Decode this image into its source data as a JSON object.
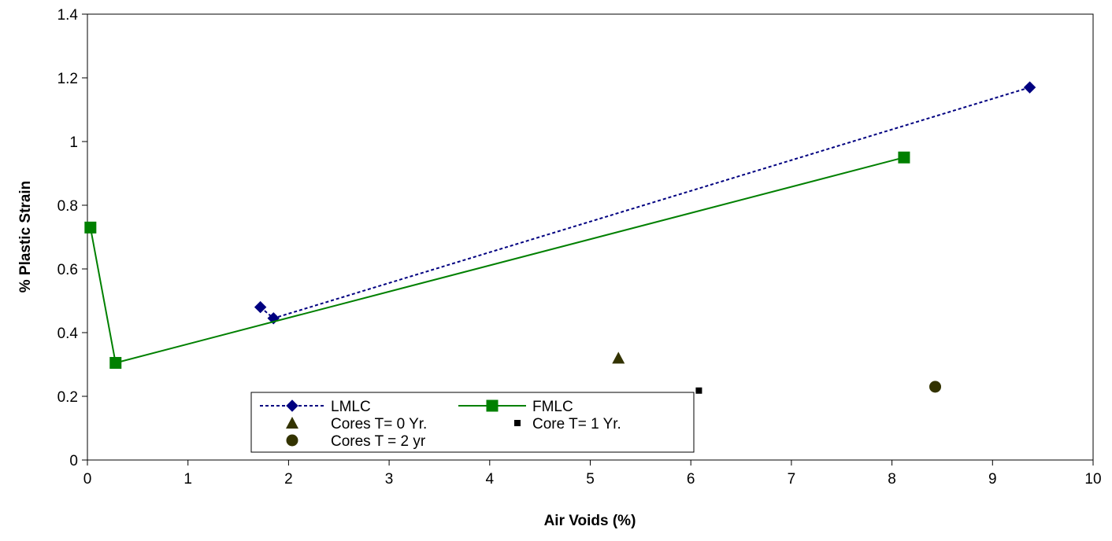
{
  "chart_data": {
    "type": "scatter",
    "title": "",
    "xlabel": "Air Voids (%)",
    "ylabel": "% Plastic Strain",
    "xlim": [
      0,
      10
    ],
    "ylim": [
      0,
      1.4
    ],
    "x_ticks": [
      "0",
      "1",
      "2",
      "3",
      "4",
      "5",
      "6",
      "7",
      "8",
      "9",
      "10"
    ],
    "y_ticks": [
      "0",
      "0.2",
      "0.4",
      "0.6",
      "0.8",
      "1",
      "1.2",
      "1.4"
    ],
    "grid": false,
    "legend_position": "bottom-left",
    "series": [
      {
        "name": "LMLC",
        "style": "dashed-line",
        "marker": "diamond",
        "color": "#000080",
        "points": [
          {
            "x": 1.72,
            "y": 0.48
          },
          {
            "x": 1.85,
            "y": 0.445
          },
          {
            "x": 9.37,
            "y": 1.17
          }
        ]
      },
      {
        "name": "FMLC",
        "style": "solid-line",
        "marker": "square",
        "color": "#008000",
        "points": [
          {
            "x": 0.03,
            "y": 0.73
          },
          {
            "x": 0.28,
            "y": 0.305
          },
          {
            "x": 8.12,
            "y": 0.95
          }
        ]
      },
      {
        "name": "Cores T= 0 Yr.",
        "style": "markers",
        "marker": "triangle",
        "color": "#333300",
        "points": [
          {
            "x": 5.28,
            "y": 0.32
          }
        ]
      },
      {
        "name": "Core T= 1 Yr.",
        "style": "markers",
        "marker": "small-square",
        "color": "#000000",
        "points": [
          {
            "x": 6.08,
            "y": 0.218
          }
        ]
      },
      {
        "name": "Cores T = 2 yr",
        "style": "markers",
        "marker": "circle",
        "color": "#333300",
        "points": [
          {
            "x": 8.43,
            "y": 0.23
          }
        ]
      }
    ]
  }
}
